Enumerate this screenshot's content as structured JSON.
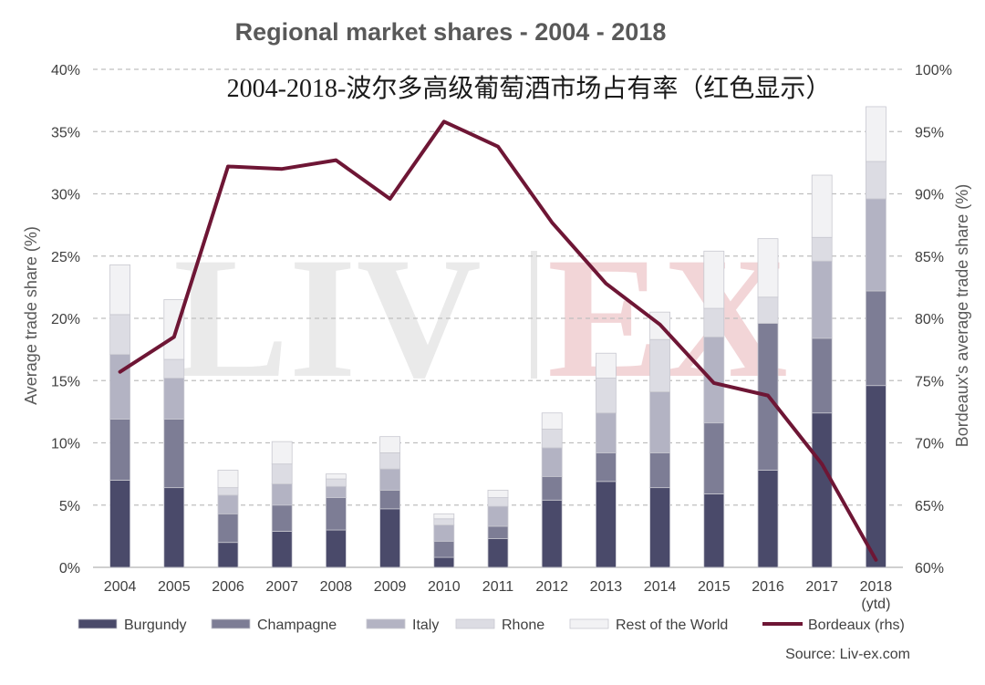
{
  "chart_data": {
    "type": "bar",
    "stacked": true,
    "title": "Regional market shares - 2004 - 2018",
    "subtitle": "2004-2018-波尔多高级葡萄酒市场占有率（红色显示）",
    "ylabel": "Average trade share (%)",
    "y2label": "Bordeaux's average trade share (%)",
    "ylim": [
      0,
      40
    ],
    "y2lim": [
      60,
      100
    ],
    "yticks": [
      "0%",
      "5%",
      "10%",
      "15%",
      "20%",
      "25%",
      "30%",
      "35%",
      "40%"
    ],
    "y2ticks": [
      "60%",
      "65%",
      "70%",
      "75%",
      "80%",
      "85%",
      "90%",
      "95%",
      "100%"
    ],
    "categories": [
      "2004",
      "2005",
      "2006",
      "2007",
      "2008",
      "2009",
      "2010",
      "2011",
      "2012",
      "2013",
      "2014",
      "2015",
      "2016",
      "2017",
      "2018"
    ],
    "category_sublabels": [
      "",
      "",
      "",
      "",
      "",
      "",
      "",
      "",
      "",
      "",
      "",
      "",
      "",
      "",
      "(ytd)"
    ],
    "series": [
      {
        "name": "Burgundy",
        "color": "#4a4a6a",
        "values": [
          7.0,
          6.4,
          2.0,
          2.9,
          3.0,
          4.7,
          0.8,
          2.3,
          5.4,
          6.9,
          6.4,
          5.9,
          7.8,
          12.4,
          14.6
        ]
      },
      {
        "name": "Champagne",
        "color": "#7d7d95",
        "values": [
          4.9,
          5.5,
          2.3,
          2.1,
          2.6,
          1.5,
          1.3,
          1.0,
          1.9,
          2.3,
          2.8,
          5.7,
          11.8,
          6.0,
          7.6
        ]
      },
      {
        "name": "Italy",
        "color": "#b3b3c3",
        "values": [
          5.2,
          3.3,
          1.5,
          1.7,
          0.9,
          1.7,
          1.3,
          1.6,
          2.3,
          3.2,
          4.9,
          6.9,
          0.0,
          6.2,
          7.4
        ]
      },
      {
        "name": "Rhone",
        "color": "#dcdce3",
        "values": [
          3.2,
          1.5,
          0.6,
          1.6,
          0.6,
          1.3,
          0.5,
          0.7,
          1.5,
          2.8,
          4.2,
          2.3,
          2.1,
          1.9,
          3.0
        ]
      },
      {
        "name": "Rest of the World",
        "color": "#f2f2f4",
        "values": [
          4.0,
          4.8,
          1.4,
          1.8,
          0.4,
          1.3,
          0.4,
          0.6,
          1.3,
          2.0,
          2.2,
          4.6,
          4.7,
          5.0,
          4.4
        ]
      }
    ],
    "line_series": {
      "name": "Bordeaux (rhs)",
      "axis": "right",
      "color": "#6e1635",
      "values": [
        75.7,
        78.5,
        92.2,
        92.0,
        92.7,
        89.6,
        95.8,
        93.8,
        87.7,
        82.8,
        79.5,
        74.8,
        73.8,
        68.3,
        60.6
      ]
    },
    "grid": true,
    "legend_position": "bottom",
    "watermark": {
      "left": "LIV",
      "right": "EX"
    },
    "source": "Source: Liv-ex.com"
  }
}
